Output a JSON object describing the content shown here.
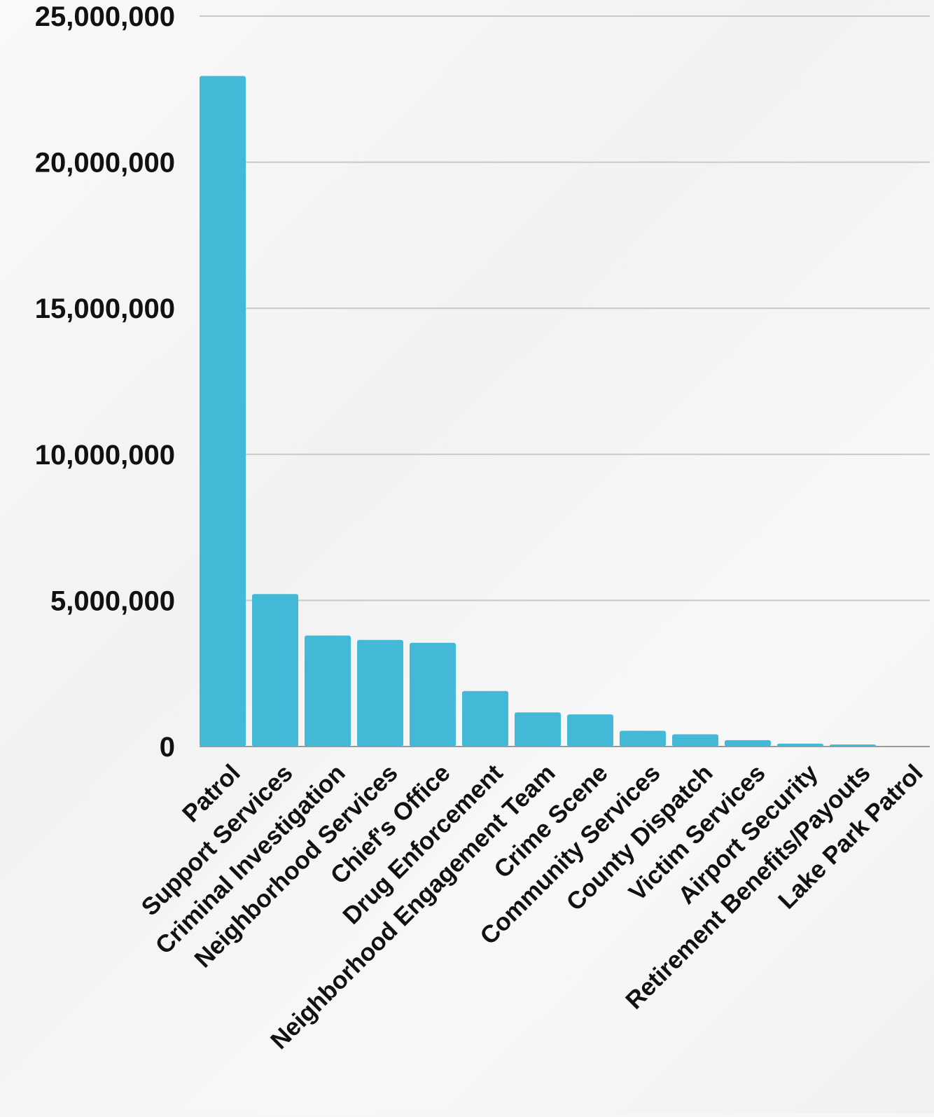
{
  "chart_data": {
    "type": "bar",
    "title": "",
    "xlabel": "",
    "ylabel": "",
    "ylim": [
      0,
      25000000
    ],
    "yticks": [
      0,
      5000000,
      10000000,
      15000000,
      20000000,
      25000000
    ],
    "ytick_labels": [
      "0",
      "5,000,000",
      "10,000,000",
      "15,000,000",
      "20,000,000",
      "25,000,000"
    ],
    "grid": true,
    "legend": "none",
    "bar_color": "#43b8d7",
    "grid_color": "#c8c8c8",
    "categories": [
      "Patrol",
      "Support Services",
      "Criminal Investigation",
      "Neighborhood Services",
      "Chief's Office",
      "Drug Enforcement",
      "Neighborhood Engagement Team",
      "Crime Scene",
      "Community Services",
      "County Dispatch",
      "Victim Services",
      "Airport Security",
      "Retirement Benefits/Payouts",
      "Lake Park Patrol"
    ],
    "values": [
      22950000,
      5220000,
      3800000,
      3650000,
      3550000,
      1900000,
      1170000,
      1100000,
      540000,
      420000,
      220000,
      100000,
      70000,
      20000
    ]
  }
}
